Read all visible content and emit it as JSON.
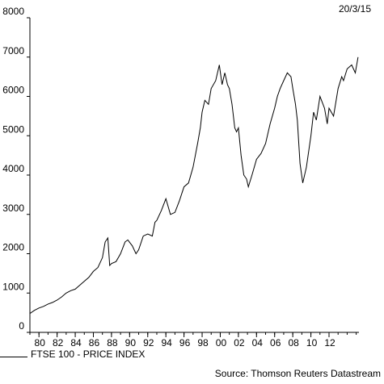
{
  "header": {
    "date": "20/3/15"
  },
  "footer": {
    "source": "Source: Thomson Reuters Datastream"
  },
  "chart_data": {
    "type": "line",
    "title": "",
    "xlabel": "",
    "ylabel": "",
    "ylim": [
      0,
      8000
    ],
    "xlim": [
      1979.0,
      2015.3
    ],
    "yticks": [
      0,
      1000,
      2000,
      3000,
      4000,
      5000,
      6000,
      7000,
      8000
    ],
    "xtick_labels": [
      "80",
      "82",
      "84",
      "86",
      "88",
      "90",
      "92",
      "94",
      "96",
      "98",
      "00",
      "02",
      "04",
      "06",
      "08",
      "10",
      "12"
    ],
    "xtick_years": [
      1980,
      1982,
      1984,
      1986,
      1988,
      1990,
      1992,
      1994,
      1996,
      1998,
      2000,
      2002,
      2004,
      2006,
      2008,
      2010,
      2012
    ],
    "grid": false,
    "legend_position": "bottom-left",
    "line_color": "#000000",
    "series": [
      {
        "name": "FTSE 100 - PRICE INDEX",
        "x": [
          1979.0,
          1979.5,
          1980.0,
          1980.5,
          1981.0,
          1981.5,
          1982.0,
          1982.5,
          1983.0,
          1983.5,
          1984.0,
          1984.5,
          1985.0,
          1985.5,
          1986.0,
          1986.5,
          1987.0,
          1987.3,
          1987.6,
          1987.8,
          1988.0,
          1988.5,
          1989.0,
          1989.5,
          1989.8,
          1990.3,
          1990.7,
          1991.0,
          1991.5,
          1992.0,
          1992.5,
          1992.8,
          1993.0,
          1993.5,
          1994.0,
          1994.5,
          1995.0,
          1995.5,
          1996.0,
          1996.5,
          1997.0,
          1997.5,
          1997.8,
          1998.0,
          1998.3,
          1998.7,
          1999.0,
          1999.5,
          1999.9,
          2000.2,
          2000.5,
          2000.8,
          2001.0,
          2001.3,
          2001.6,
          2001.8,
          2002.0,
          2002.3,
          2002.6,
          2002.9,
          2003.1,
          2003.5,
          2004.0,
          2004.5,
          2005.0,
          2005.5,
          2006.0,
          2006.3,
          2006.6,
          2007.0,
          2007.4,
          2007.8,
          2008.0,
          2008.3,
          2008.5,
          2008.8,
          2009.1,
          2009.5,
          2010.0,
          2010.3,
          2010.6,
          2011.0,
          2011.5,
          2011.8,
          2012.0,
          2012.5,
          2013.0,
          2013.4,
          2013.6,
          2014.0,
          2014.5,
          2014.9,
          2015.2
        ],
        "values": [
          480,
          560,
          620,
          660,
          720,
          760,
          820,
          900,
          1000,
          1060,
          1100,
          1200,
          1300,
          1400,
          1550,
          1650,
          1900,
          2300,
          2400,
          1700,
          1750,
          1800,
          2000,
          2300,
          2350,
          2200,
          2000,
          2100,
          2450,
          2500,
          2450,
          2800,
          2850,
          3100,
          3400,
          3000,
          3050,
          3350,
          3700,
          3800,
          4200,
          4800,
          5200,
          5600,
          5900,
          5800,
          6200,
          6400,
          6800,
          6300,
          6600,
          6300,
          6200,
          5800,
          5200,
          5100,
          5200,
          4500,
          4000,
          3900,
          3700,
          4000,
          4400,
          4550,
          4800,
          5300,
          5700,
          6000,
          6200,
          6400,
          6600,
          6500,
          6200,
          5800,
          5400,
          4300,
          3800,
          4200,
          5000,
          5600,
          5400,
          6000,
          5700,
          5300,
          5700,
          5500,
          6200,
          6500,
          6400,
          6700,
          6800,
          6600,
          7000
        ]
      }
    ]
  }
}
